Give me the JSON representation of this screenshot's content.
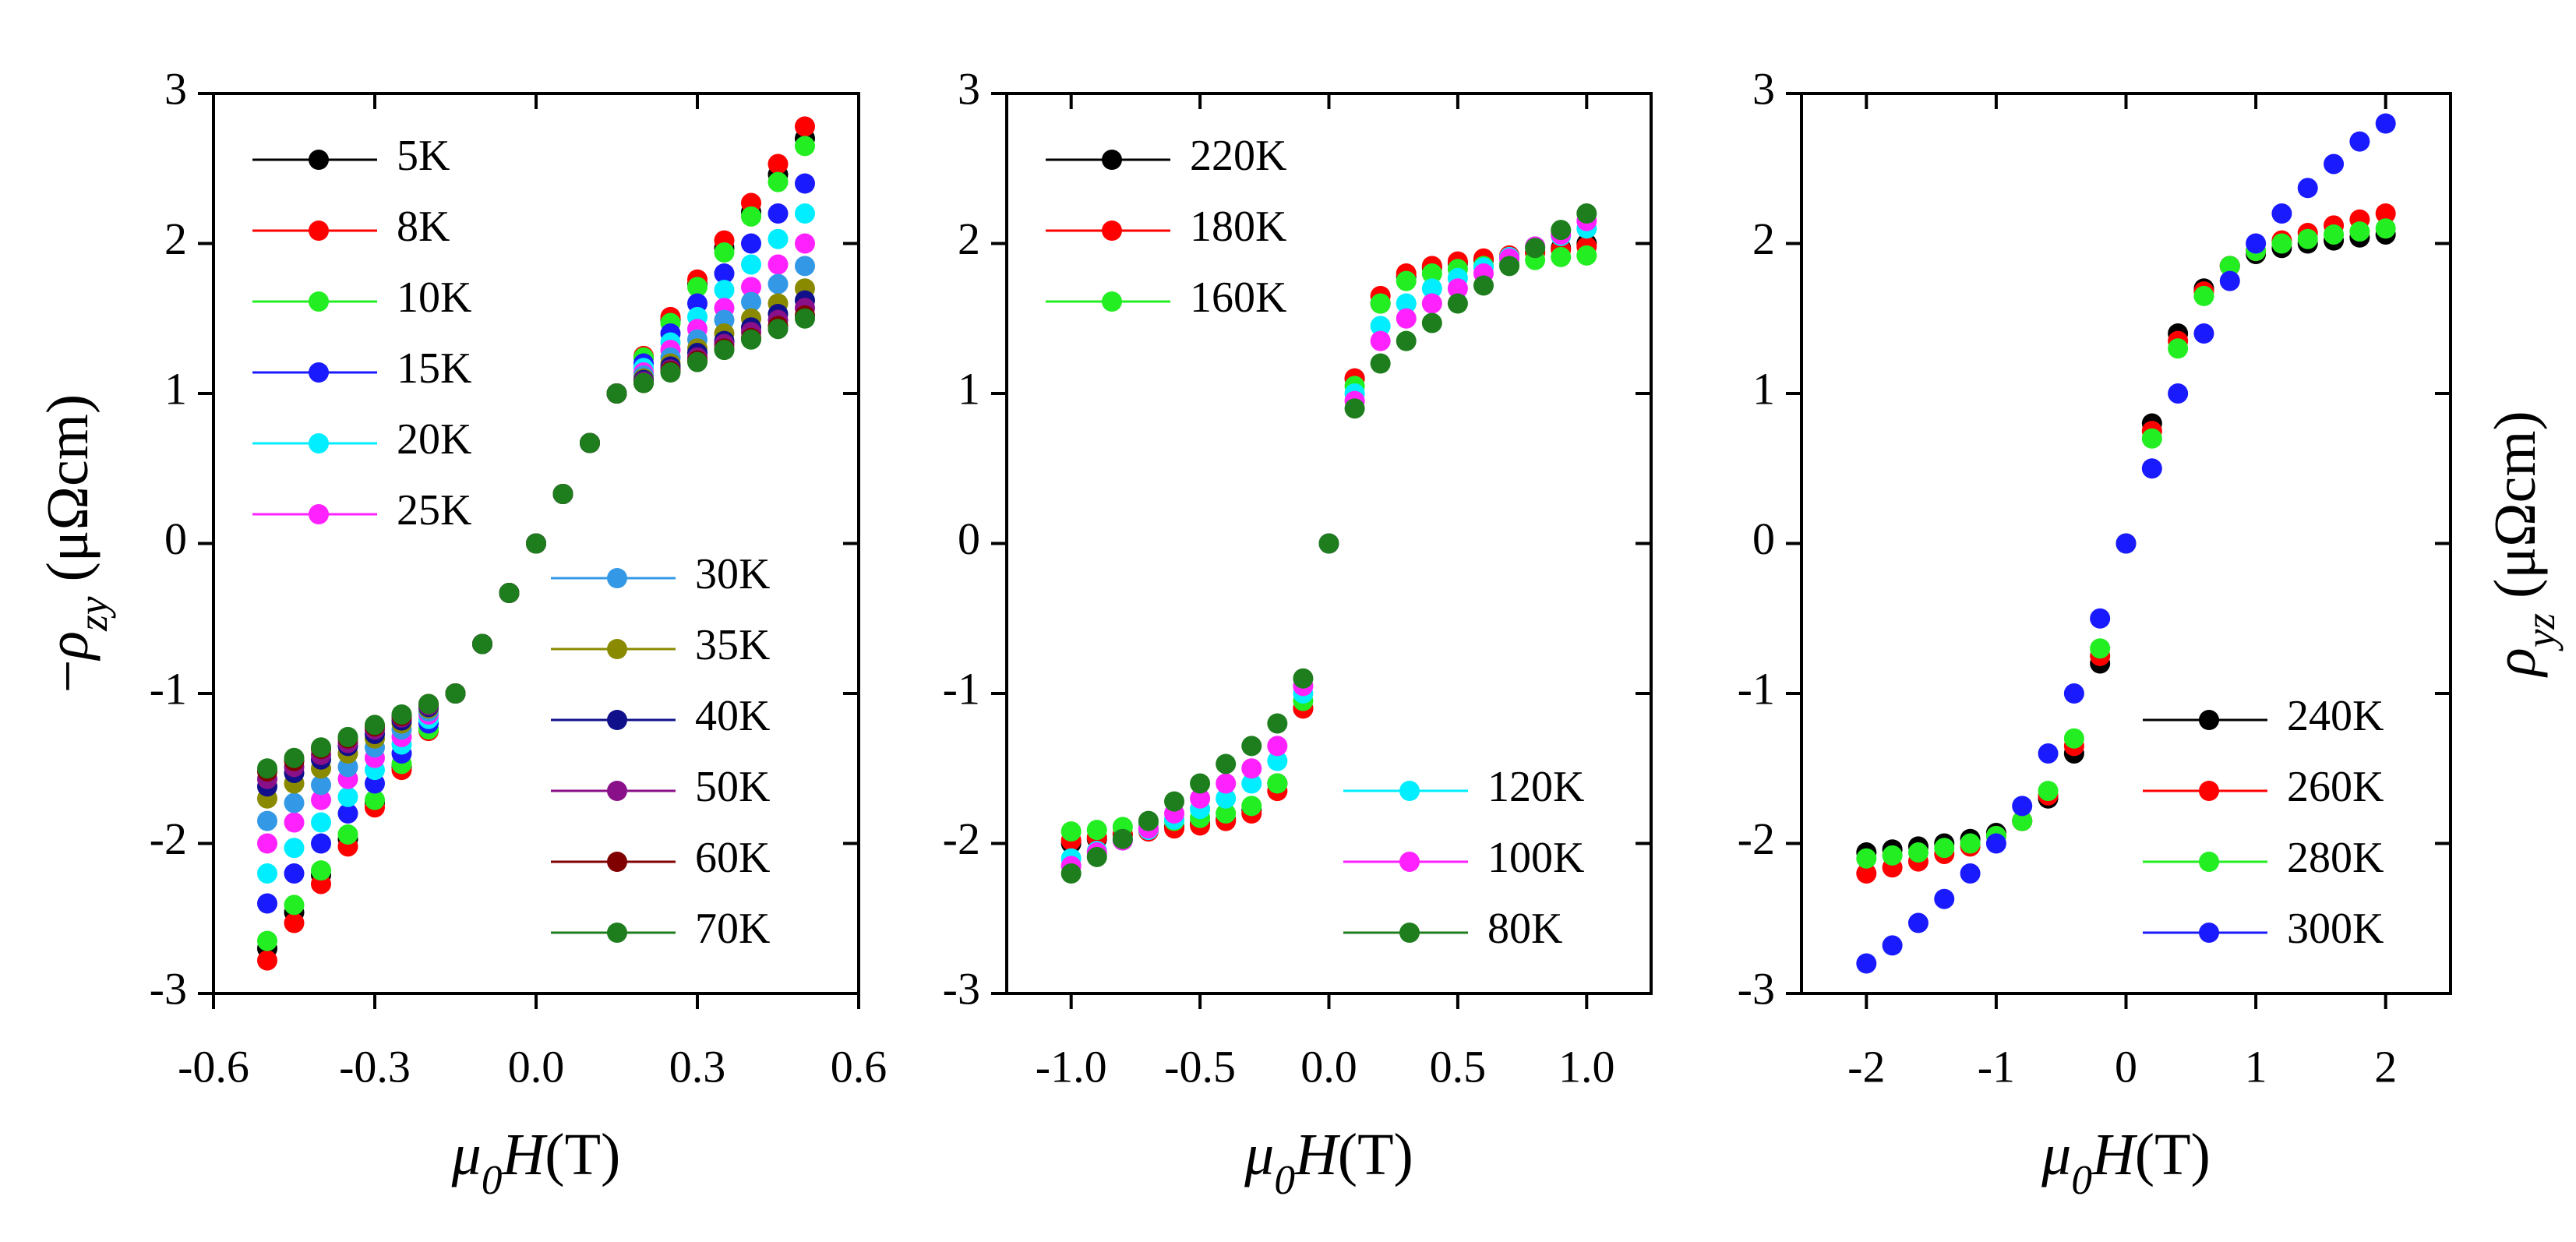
{
  "chart_data": [
    {
      "type": "scatter",
      "y_label": {
        "sign": "−",
        "symbol": "ρ",
        "sub": "zy",
        "unit": " (μΩcm)"
      },
      "x_label": {
        "symbol": "μ",
        "sub": "0",
        "var": "H",
        "unit": "(T)"
      },
      "xlim": [
        -0.6,
        0.6
      ],
      "xticks": [
        -0.6,
        -0.3,
        {
          "value": 0,
          "label": "0.0"
        },
        0.3,
        0.6
      ],
      "ylim": [
        -3,
        3
      ],
      "yticks": [
        -3,
        -2,
        -1,
        0,
        1,
        2,
        3
      ],
      "legend_loc": [
        "upper left",
        "lower right"
      ],
      "x": [
        -0.5,
        -0.45,
        -0.4,
        -0.35,
        -0.3,
        -0.25,
        -0.2,
        -0.15,
        -0.1,
        -0.05,
        0,
        0.05,
        0.1,
        0.15,
        0.2,
        0.25,
        0.3,
        0.35,
        0.4,
        0.45,
        0.5
      ],
      "series": [
        {
          "name": "5K",
          "color": "#000000",
          "values": [
            -2.7,
            -2.46,
            -2.21,
            -1.97,
            -1.73,
            -1.49,
            -1.24,
            -1,
            -0.67,
            -0.33,
            0,
            0.33,
            0.67,
            1,
            1.24,
            1.49,
            1.73,
            1.97,
            2.21,
            2.46,
            2.7
          ]
        },
        {
          "name": "8K",
          "color": "#ff0000",
          "values": [
            -2.78,
            -2.53,
            -2.27,
            -2.02,
            -1.76,
            -1.51,
            -1.25,
            -1,
            -0.67,
            -0.33,
            0,
            0.33,
            0.67,
            1,
            1.25,
            1.51,
            1.76,
            2.02,
            2.27,
            2.53,
            2.78
          ]
        },
        {
          "name": "10K",
          "color": "#22ee22",
          "values": [
            -2.65,
            -2.41,
            -2.18,
            -1.94,
            -1.71,
            -1.47,
            -1.24,
            -1,
            -0.67,
            -0.33,
            0,
            0.33,
            0.67,
            1,
            1.24,
            1.47,
            1.71,
            1.94,
            2.18,
            2.41,
            2.65
          ]
        },
        {
          "name": "15K",
          "color": "#1a1aff",
          "values": [
            -2.4,
            -2.2,
            -2,
            -1.8,
            -1.6,
            -1.4,
            -1.2,
            -1,
            -0.67,
            -0.33,
            0,
            0.33,
            0.67,
            1,
            1.2,
            1.4,
            1.6,
            1.8,
            2,
            2.2,
            2.4
          ]
        },
        {
          "name": "20K",
          "color": "#00eeff",
          "values": [
            -2.2,
            -2.03,
            -1.86,
            -1.69,
            -1.51,
            -1.34,
            -1.17,
            -1,
            -0.67,
            -0.33,
            0,
            0.33,
            0.67,
            1,
            1.17,
            1.34,
            1.51,
            1.69,
            1.86,
            2.03,
            2.2
          ]
        },
        {
          "name": "25K",
          "color": "#ff22ff",
          "values": [
            -2,
            -1.86,
            -1.71,
            -1.57,
            -1.43,
            -1.29,
            -1.14,
            -1,
            -0.67,
            -0.33,
            0,
            0.33,
            0.67,
            1,
            1.14,
            1.29,
            1.43,
            1.57,
            1.71,
            1.86,
            2
          ]
        },
        {
          "name": "30K",
          "color": "#3399e6",
          "values": [
            -1.85,
            -1.73,
            -1.61,
            -1.49,
            -1.36,
            -1.24,
            -1.12,
            -1,
            -0.67,
            -0.33,
            0,
            0.33,
            0.67,
            1,
            1.12,
            1.24,
            1.36,
            1.49,
            1.61,
            1.73,
            1.85
          ]
        },
        {
          "name": "35K",
          "color": "#8a8a00",
          "values": [
            -1.7,
            -1.6,
            -1.5,
            -1.4,
            -1.3,
            -1.2,
            -1.1,
            -1,
            -0.67,
            -0.33,
            0,
            0.33,
            0.67,
            1,
            1.1,
            1.2,
            1.3,
            1.4,
            1.5,
            1.6,
            1.7
          ]
        },
        {
          "name": "40K",
          "color": "#10108a",
          "values": [
            -1.62,
            -1.53,
            -1.44,
            -1.35,
            -1.27,
            -1.18,
            -1.09,
            -1,
            -0.67,
            -0.33,
            0,
            0.33,
            0.67,
            1,
            1.09,
            1.18,
            1.27,
            1.35,
            1.44,
            1.53,
            1.62
          ]
        },
        {
          "name": "50K",
          "color": "#8a108a",
          "values": [
            -1.57,
            -1.49,
            -1.41,
            -1.33,
            -1.24,
            -1.16,
            -1.08,
            -1,
            -0.67,
            -0.33,
            0,
            0.33,
            0.67,
            1,
            1.08,
            1.16,
            1.24,
            1.33,
            1.41,
            1.49,
            1.57
          ]
        },
        {
          "name": "60K",
          "color": "#800000",
          "values": [
            -1.52,
            -1.45,
            -1.37,
            -1.3,
            -1.22,
            -1.15,
            -1.07,
            -1,
            -0.67,
            -0.33,
            0,
            0.33,
            0.67,
            1,
            1.07,
            1.15,
            1.22,
            1.3,
            1.37,
            1.45,
            1.52
          ]
        },
        {
          "name": "70K",
          "color": "#1e7e1e",
          "values": [
            -1.5,
            -1.43,
            -1.36,
            -1.29,
            -1.21,
            -1.14,
            -1.07,
            -1,
            -0.67,
            -0.33,
            0,
            0.33,
            0.67,
            1,
            1.07,
            1.14,
            1.21,
            1.29,
            1.36,
            1.43,
            1.5
          ]
        }
      ]
    },
    {
      "type": "scatter",
      "x_label": {
        "symbol": "μ",
        "sub": "0",
        "var": "H",
        "unit": "(T)"
      },
      "xlim": [
        -1.25,
        1.25
      ],
      "xticks": [
        {
          "value": -1,
          "label": "-1.0"
        },
        -0.5,
        {
          "value": 0,
          "label": "0.0"
        },
        0.5,
        {
          "value": 1,
          "label": "1.0"
        }
      ],
      "ylim": [
        -3,
        3
      ],
      "yticks": [
        -3,
        -2,
        -1,
        0,
        1,
        2,
        3
      ],
      "legend_loc": [
        "upper left",
        "lower right"
      ],
      "x": [
        -1,
        -0.9,
        -0.8,
        -0.7,
        -0.6,
        -0.5,
        -0.4,
        -0.3,
        -0.2,
        -0.1,
        0,
        0.1,
        0.2,
        0.3,
        0.4,
        0.5,
        0.6,
        0.7,
        0.8,
        0.9,
        1
      ],
      "series": [
        {
          "name": "220K",
          "color": "#000000",
          "values": [
            -2,
            -1.97,
            -1.94,
            -1.91,
            -1.89,
            -1.87,
            -1.84,
            -1.78,
            -1.6,
            -1.1,
            0,
            1.1,
            1.6,
            1.78,
            1.84,
            1.87,
            1.89,
            1.91,
            1.94,
            1.97,
            2
          ]
        },
        {
          "name": "180K",
          "color": "#ff0000",
          "values": [
            -1.98,
            -1.96,
            -1.94,
            -1.92,
            -1.9,
            -1.88,
            -1.85,
            -1.8,
            -1.65,
            -1.1,
            0,
            1.1,
            1.65,
            1.8,
            1.85,
            1.88,
            1.9,
            1.92,
            1.94,
            1.96,
            1.98
          ]
        },
        {
          "name": "160K",
          "color": "#22ee22",
          "values": [
            -1.92,
            -1.91,
            -1.89,
            -1.87,
            -1.85,
            -1.83,
            -1.8,
            -1.75,
            -1.6,
            -1.05,
            0,
            1.05,
            1.6,
            1.75,
            1.8,
            1.83,
            1.85,
            1.87,
            1.89,
            1.91,
            1.92
          ]
        },
        {
          "name": "120K",
          "color": "#00eeff",
          "values": [
            -2.1,
            -2.05,
            -1.98,
            -1.91,
            -1.84,
            -1.77,
            -1.7,
            -1.6,
            -1.45,
            -1,
            0,
            1,
            1.45,
            1.6,
            1.7,
            1.77,
            1.84,
            1.91,
            1.98,
            2.05,
            2.1
          ]
        },
        {
          "name": "100K",
          "color": "#ff22ff",
          "values": [
            -2.15,
            -2.06,
            -1.98,
            -1.9,
            -1.8,
            -1.7,
            -1.6,
            -1.5,
            -1.35,
            -0.95,
            0,
            0.95,
            1.35,
            1.5,
            1.6,
            1.7,
            1.8,
            1.9,
            1.98,
            2.06,
            2.15
          ]
        },
        {
          "name": "80K",
          "color": "#1e7e1e",
          "values": [
            -2.2,
            -2.09,
            -1.97,
            -1.85,
            -1.72,
            -1.6,
            -1.47,
            -1.35,
            -1.2,
            -0.9,
            0,
            0.9,
            1.2,
            1.35,
            1.47,
            1.6,
            1.72,
            1.85,
            1.97,
            2.09,
            2.2
          ]
        }
      ]
    },
    {
      "type": "scatter",
      "y_label": {
        "symbol": "ρ",
        "sub": "yz",
        "unit": " (μΩcm)"
      },
      "x_label": {
        "symbol": "μ",
        "sub": "0",
        "var": "H",
        "unit": "(T)"
      },
      "xlim": [
        -2.5,
        2.5
      ],
      "xticks": [
        -2,
        -1,
        0,
        1,
        2
      ],
      "ylim": [
        -3,
        3
      ],
      "yticks": [
        -3,
        -2,
        -1,
        0,
        1,
        2,
        3
      ],
      "legend_loc": [
        "lower right"
      ],
      "x": [
        -2,
        -1.8,
        -1.6,
        -1.4,
        -1.2,
        -1,
        -0.8,
        -0.6,
        -0.4,
        -0.2,
        0,
        0.2,
        0.4,
        0.6,
        0.8,
        1,
        1.2,
        1.4,
        1.6,
        1.8,
        2
      ],
      "series": [
        {
          "name": "240K",
          "color": "#000000",
          "values": [
            -2.06,
            -2.04,
            -2.02,
            -2,
            -1.97,
            -1.93,
            -1.85,
            -1.7,
            -1.4,
            -0.8,
            0,
            0.8,
            1.4,
            1.7,
            1.85,
            1.93,
            1.97,
            2,
            2.02,
            2.04,
            2.06
          ]
        },
        {
          "name": "260K",
          "color": "#ff0000",
          "values": [
            -2.2,
            -2.16,
            -2.12,
            -2.07,
            -2.02,
            -1.95,
            -1.85,
            -1.68,
            -1.35,
            -0.75,
            0,
            0.75,
            1.35,
            1.68,
            1.85,
            1.95,
            2.02,
            2.07,
            2.12,
            2.16,
            2.2
          ]
        },
        {
          "name": "280K",
          "color": "#22ee22",
          "values": [
            -2.1,
            -2.08,
            -2.06,
            -2.03,
            -2,
            -1.95,
            -1.85,
            -1.65,
            -1.3,
            -0.7,
            0,
            0.7,
            1.3,
            1.65,
            1.85,
            1.95,
            2,
            2.03,
            2.06,
            2.08,
            2.1
          ]
        },
        {
          "name": "300K",
          "color": "#1a1aff",
          "values": [
            -2.8,
            -2.68,
            -2.53,
            -2.37,
            -2.2,
            -2,
            -1.75,
            -1.4,
            -1,
            -0.5,
            0,
            0.5,
            1,
            1.4,
            1.75,
            2,
            2.2,
            2.37,
            2.53,
            2.68,
            2.8
          ]
        }
      ]
    }
  ]
}
